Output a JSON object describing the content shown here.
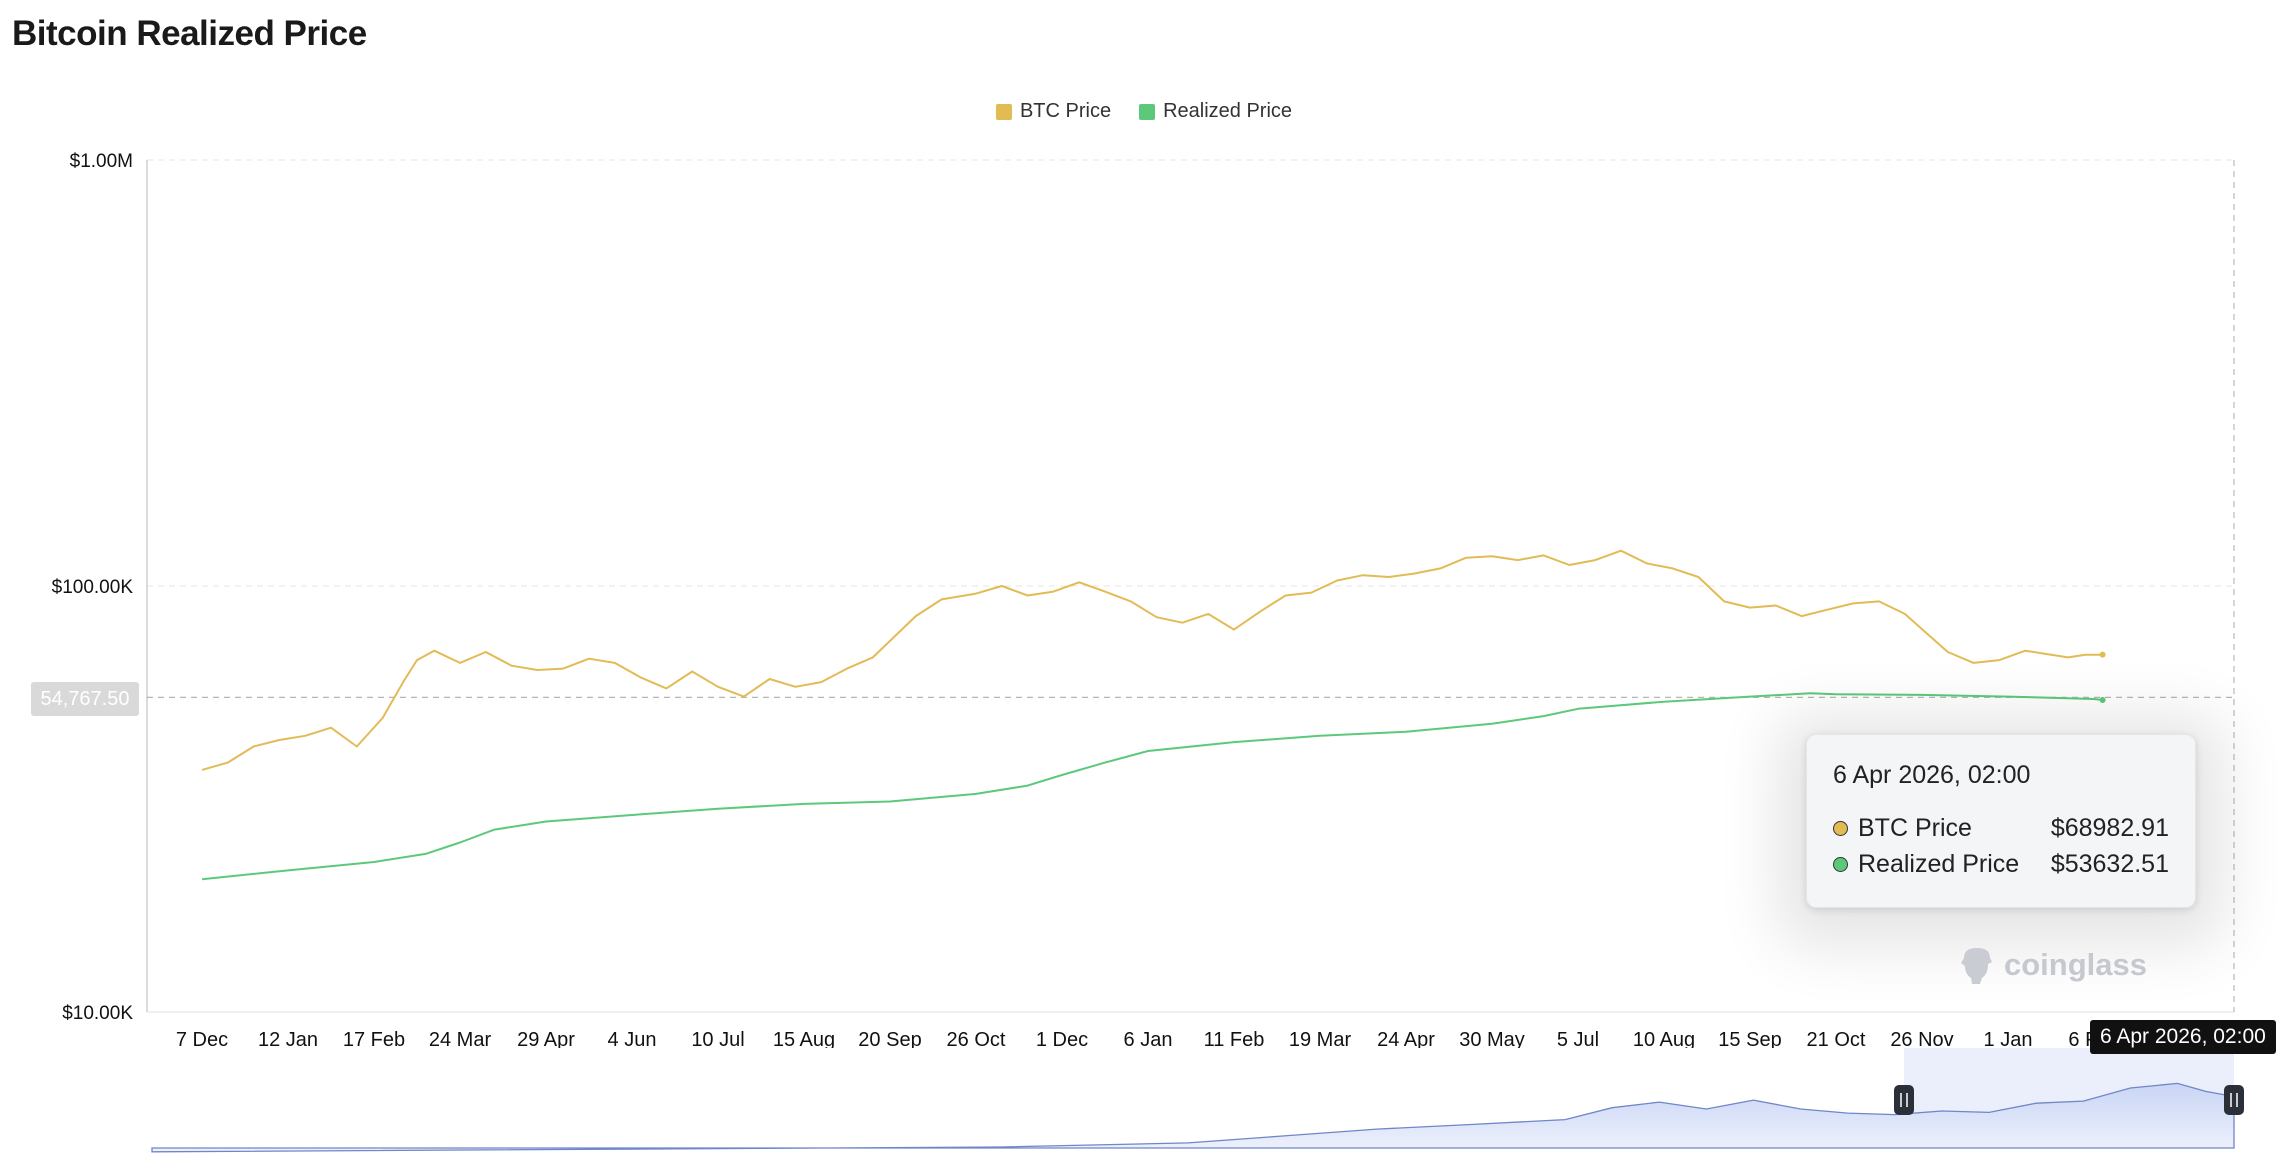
{
  "page": {
    "title": "Bitcoin Realized Price"
  },
  "legend": [
    {
      "label": "BTC Price",
      "color": "#e2bb55"
    },
    {
      "label": "Realized Price",
      "color": "#5cc97a"
    }
  ],
  "tooltip": {
    "date": "6 Apr 2026, 02:00",
    "rows": [
      {
        "name": "BTC Price",
        "value": "$68982.91",
        "color": "#e2bb55"
      },
      {
        "name": "Realized Price",
        "value": "$53632.51",
        "color": "#5cc97a"
      }
    ]
  },
  "crosshair": {
    "x_label": "6 Apr 2026, 02:00",
    "y_label": "54,767.50"
  },
  "watermark": {
    "text": "coinglass",
    "icon": "coinglass-logo-icon"
  },
  "chart_data": {
    "type": "line",
    "title": "Bitcoin Realized Price",
    "y_scale": "log",
    "ylim": [
      10000,
      1000000
    ],
    "y_ticks": [
      {
        "value": 10000,
        "label": "$10.00K"
      },
      {
        "value": 100000,
        "label": "$100.00K"
      },
      {
        "value": 1000000,
        "label": "$1.00M"
      }
    ],
    "x_tick_labels": [
      "7 Dec",
      "12 Jan",
      "17 Feb",
      "24 Mar",
      "29 Apr",
      "4 Jun",
      "10 Jul",
      "15 Aug",
      "20 Sep",
      "26 Oct",
      "1 Dec",
      "6 Jan",
      "11 Feb",
      "19 Mar",
      "24 Apr",
      "30 May",
      "5 Jul",
      "10 Aug",
      "15 Sep",
      "21 Oct",
      "26 Nov",
      "1 Jan",
      "6 Feb"
    ],
    "grid": true,
    "legend_position": "top-center",
    "series": [
      {
        "name": "BTC Price",
        "color": "#e2bb55",
        "points": [
          [
            0,
            37000
          ],
          [
            0.3,
            38500
          ],
          [
            0.6,
            42000
          ],
          [
            0.9,
            43500
          ],
          [
            1.2,
            44500
          ],
          [
            1.5,
            46500
          ],
          [
            1.8,
            42000
          ],
          [
            2.1,
            49000
          ],
          [
            2.35,
            60000
          ],
          [
            2.5,
            67000
          ],
          [
            2.7,
            70500
          ],
          [
            3.0,
            66000
          ],
          [
            3.3,
            70000
          ],
          [
            3.6,
            65000
          ],
          [
            3.9,
            63500
          ],
          [
            4.2,
            64000
          ],
          [
            4.5,
            67500
          ],
          [
            4.8,
            66000
          ],
          [
            5.1,
            61000
          ],
          [
            5.4,
            57500
          ],
          [
            5.7,
            63000
          ],
          [
            6.0,
            58000
          ],
          [
            6.3,
            55000
          ],
          [
            6.6,
            60500
          ],
          [
            6.9,
            58000
          ],
          [
            7.2,
            59500
          ],
          [
            7.5,
            64000
          ],
          [
            7.8,
            68000
          ],
          [
            8.3,
            85000
          ],
          [
            8.6,
            93000
          ],
          [
            9.0,
            96000
          ],
          [
            9.3,
            100000
          ],
          [
            9.6,
            95000
          ],
          [
            9.9,
            97000
          ],
          [
            10.2,
            102000
          ],
          [
            10.5,
            97000
          ],
          [
            10.8,
            92000
          ],
          [
            11.1,
            84500
          ],
          [
            11.4,
            82000
          ],
          [
            11.7,
            86000
          ],
          [
            12.0,
            79000
          ],
          [
            12.3,
            87000
          ],
          [
            12.6,
            95000
          ],
          [
            12.9,
            96500
          ],
          [
            13.2,
            103000
          ],
          [
            13.5,
            106000
          ],
          [
            13.8,
            105000
          ],
          [
            14.1,
            107000
          ],
          [
            14.4,
            110000
          ],
          [
            14.7,
            116500
          ],
          [
            15.0,
            117500
          ],
          [
            15.3,
            115000
          ],
          [
            15.6,
            118000
          ],
          [
            15.9,
            112000
          ],
          [
            16.2,
            115000
          ],
          [
            16.5,
            121000
          ],
          [
            16.8,
            113000
          ],
          [
            17.1,
            110000
          ],
          [
            17.4,
            105000
          ],
          [
            17.7,
            92000
          ],
          [
            18.0,
            89000
          ],
          [
            18.3,
            90000
          ],
          [
            18.6,
            85000
          ],
          [
            18.9,
            88000
          ],
          [
            19.2,
            91000
          ],
          [
            19.5,
            92000
          ],
          [
            19.8,
            86000
          ],
          [
            20.1,
            76000
          ],
          [
            20.3,
            70000
          ],
          [
            20.6,
            66000
          ],
          [
            20.9,
            67000
          ],
          [
            21.2,
            70500
          ],
          [
            21.5,
            69000
          ],
          [
            21.7,
            68000
          ],
          [
            21.9,
            69000
          ],
          [
            22.1,
            69000
          ]
        ]
      },
      {
        "name": "Realized Price",
        "color": "#5cc97a",
        "points": [
          [
            0,
            20500
          ],
          [
            1,
            21500
          ],
          [
            2,
            22500
          ],
          [
            2.6,
            23500
          ],
          [
            3.0,
            25000
          ],
          [
            3.4,
            26800
          ],
          [
            4,
            28000
          ],
          [
            5,
            29000
          ],
          [
            6,
            30000
          ],
          [
            7,
            30800
          ],
          [
            8,
            31200
          ],
          [
            9,
            32500
          ],
          [
            9.6,
            34000
          ],
          [
            10,
            36000
          ],
          [
            10.5,
            38500
          ],
          [
            11,
            41000
          ],
          [
            12,
            43000
          ],
          [
            13,
            44500
          ],
          [
            14,
            45500
          ],
          [
            15,
            47500
          ],
          [
            15.6,
            49500
          ],
          [
            16,
            51500
          ],
          [
            17,
            53500
          ],
          [
            18,
            55000
          ],
          [
            18.7,
            56000
          ],
          [
            19,
            55700
          ],
          [
            20,
            55500
          ],
          [
            21,
            55000
          ],
          [
            22,
            54300
          ],
          [
            22.1,
            54000
          ]
        ]
      }
    ]
  }
}
